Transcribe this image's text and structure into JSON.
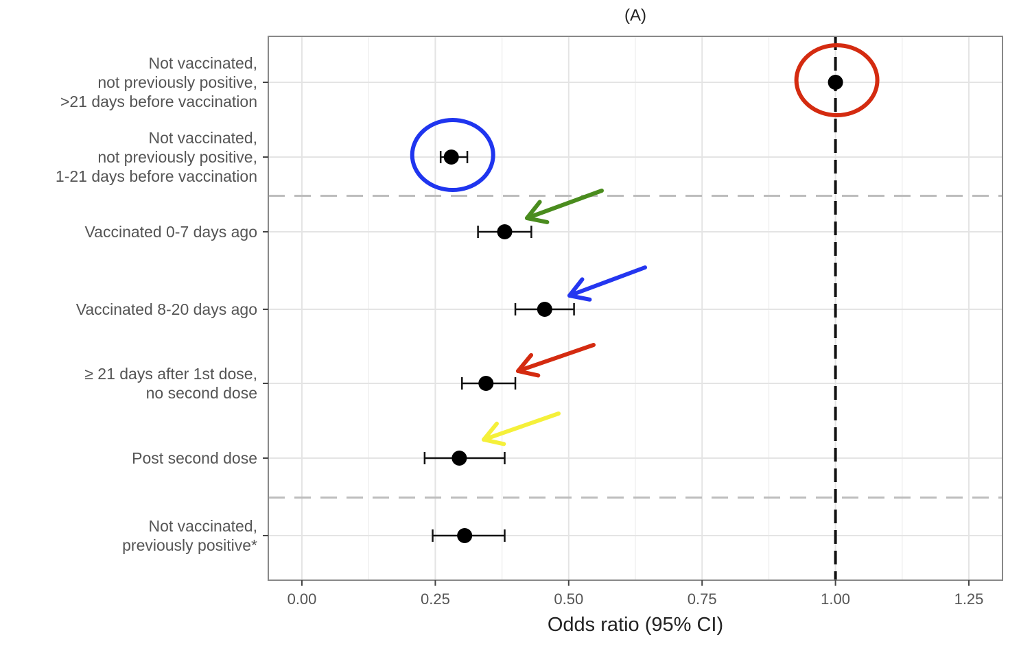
{
  "chart_data": {
    "type": "forest",
    "title": "(A)",
    "xlabel": "Odds ratio (95% CI)",
    "ylabel": "",
    "xlim": [
      -0.03,
      1.35
    ],
    "x_ticks": [
      0.0,
      0.25,
      0.5,
      0.75,
      1.0,
      1.25
    ],
    "x_tick_labels": [
      "0.00",
      "0.25",
      "0.50",
      "0.75",
      "1.00",
      "1.25"
    ],
    "grid": true,
    "reference_line": 1.0,
    "group_separators_after_rows": [
      2,
      6
    ],
    "rows": [
      {
        "label_lines": [
          "Not vaccinated,",
          "not previously positive,",
          ">21 days before vaccination"
        ],
        "estimate": 1.0,
        "lower": 1.0,
        "upper": 1.0
      },
      {
        "label_lines": [
          "Not vaccinated,",
          "not previously positive,",
          "1-21 days before vaccination"
        ],
        "estimate": 0.28,
        "lower": 0.26,
        "upper": 0.31
      },
      {
        "label_lines": [
          "Vaccinated 0-7 days ago"
        ],
        "estimate": 0.38,
        "lower": 0.33,
        "upper": 0.43
      },
      {
        "label_lines": [
          "Vaccinated 8-20 days ago"
        ],
        "estimate": 0.455,
        "lower": 0.4,
        "upper": 0.51
      },
      {
        "label_lines": [
          "≥ 21 days after 1st dose,",
          "no second dose"
        ],
        "estimate": 0.345,
        "lower": 0.3,
        "upper": 0.4
      },
      {
        "label_lines": [
          "Post second dose"
        ],
        "estimate": 0.295,
        "lower": 0.23,
        "upper": 0.38
      },
      {
        "label_lines": [
          "Not vaccinated,",
          "previously positive*"
        ],
        "estimate": 0.305,
        "lower": 0.245,
        "upper": 0.38
      }
    ],
    "annotations": {
      "circles": [
        {
          "row": 0,
          "color": "#d42b10"
        },
        {
          "row": 1,
          "color": "#1f35ef"
        }
      ],
      "arrows": [
        {
          "row": 2,
          "color": "#4a8c1e"
        },
        {
          "row": 3,
          "color": "#2436f0"
        },
        {
          "row": 4,
          "color": "#d42b10"
        },
        {
          "row": 5,
          "color": "#f5f03a"
        }
      ]
    }
  }
}
